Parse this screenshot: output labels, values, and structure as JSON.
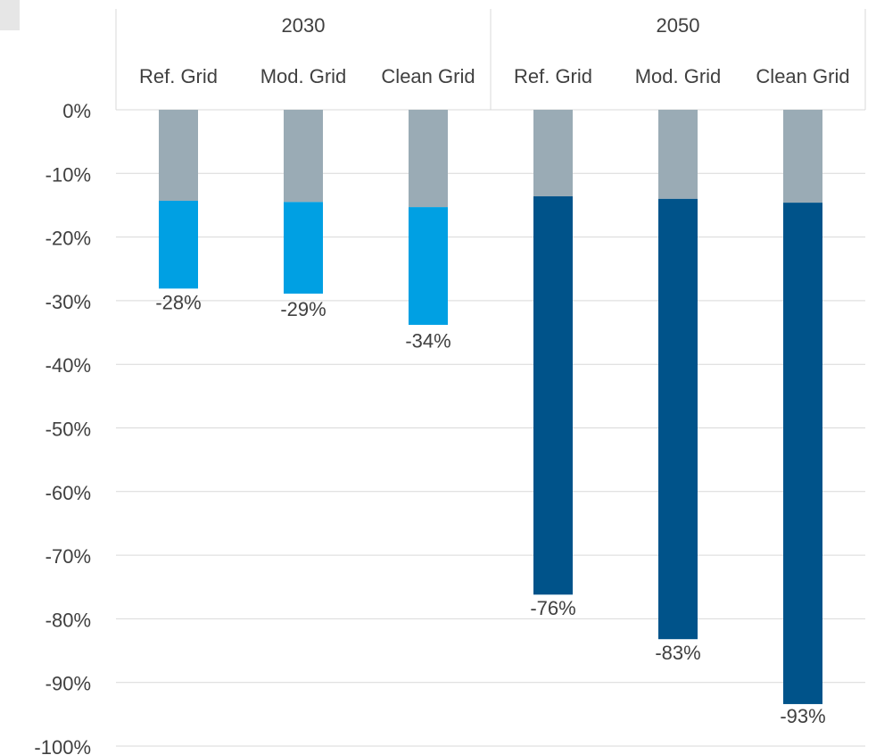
{
  "chart_data": {
    "type": "bar",
    "stacked": true,
    "groups": [
      {
        "label": "2030",
        "categories": [
          "Ref. Grid",
          "Mod. Grid",
          "Clean Grid"
        ]
      },
      {
        "label": "2050",
        "categories": [
          "Ref. Grid",
          "Mod. Grid",
          "Clean Grid"
        ]
      }
    ],
    "categories": [
      "Ref. Grid",
      "Mod. Grid",
      "Clean Grid",
      "Ref. Grid",
      "Mod. Grid",
      "Clean Grid"
    ],
    "series": [
      {
        "values": [
          -14.3,
          -14.5,
          -15.3,
          -13.6,
          -14.0,
          -14.6
        ],
        "color": "#9aabb5"
      },
      {
        "values": [
          -13.8,
          -14.4,
          -18.5,
          -62.6,
          -69.2,
          -78.8
        ],
        "colors": [
          "#00a0e3",
          "#00a0e3",
          "#00a0e3",
          "#00538a",
          "#00538a",
          "#00538a"
        ]
      }
    ],
    "totals": [
      -28,
      -29,
      -34,
      -76,
      -83,
      -93
    ],
    "data_labels": [
      "-28%",
      "-29%",
      "-34%",
      "-76%",
      "-83%",
      "-93%"
    ],
    "y_ticks": [
      0,
      -10,
      -20,
      -30,
      -40,
      -50,
      -60,
      -70,
      -80,
      -90,
      -100
    ],
    "y_tick_labels": [
      "0%",
      "-10%",
      "-20%",
      "-30%",
      "-40%",
      "-50%",
      "-60%",
      "-70%",
      "-80%",
      "-90%",
      "-100%"
    ],
    "ylim": [
      -100,
      0
    ],
    "grid": true,
    "legend": "none",
    "colors": {
      "grid": "#d9d9d9",
      "text": "#404040"
    }
  }
}
